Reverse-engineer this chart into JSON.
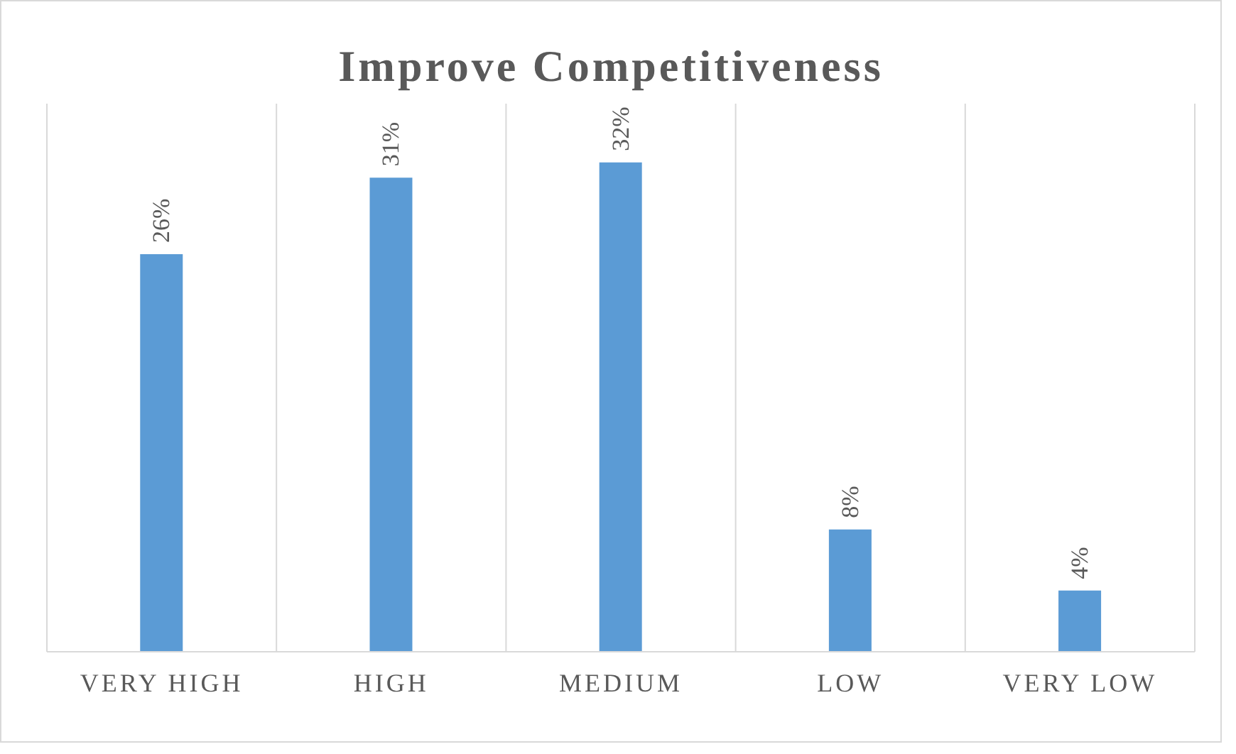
{
  "chart_data": {
    "type": "bar",
    "title": "Improve Competitiveness",
    "categories": [
      "VERY HIGH",
      "HIGH",
      "MEDIUM",
      "LOW",
      "VERY LOW"
    ],
    "values": [
      26,
      31,
      32,
      8,
      4
    ],
    "value_labels": [
      "26%",
      "31%",
      "32%",
      "8%",
      "4%"
    ],
    "color": "#5b9bd5",
    "grid": "x"
  }
}
